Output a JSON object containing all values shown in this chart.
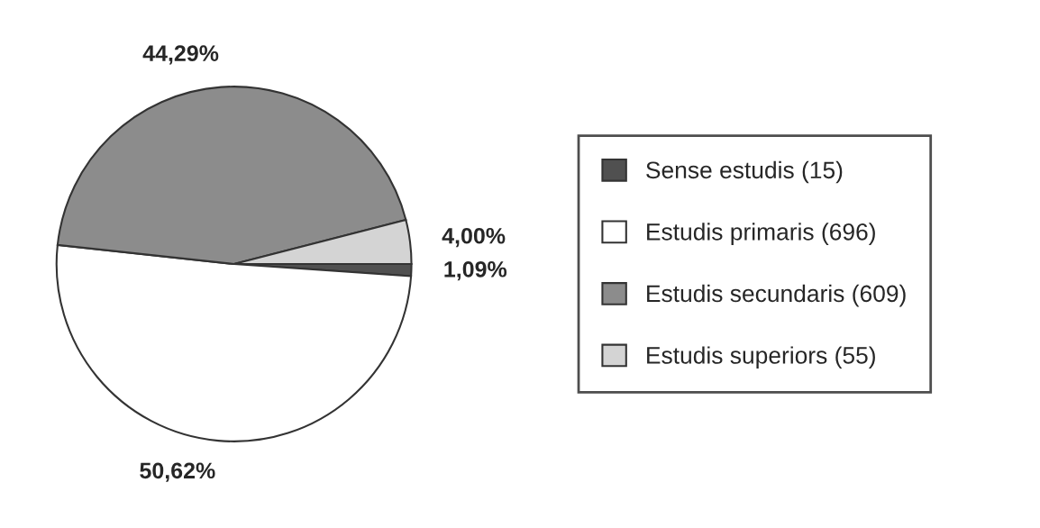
{
  "chart_data": {
    "type": "pie",
    "categories": [
      "Sense estudis (15)",
      "Estudis primaris (696)",
      "Estudis secundaris (609)",
      "Estudis superiors (55)"
    ],
    "values": [
      1.09,
      50.62,
      44.29,
      4.0
    ],
    "value_labels": [
      "1,09%",
      "50,62%",
      "44,29%",
      "4,00%"
    ],
    "colors": [
      "#505050",
      "#ffffff",
      "#8c8c8c",
      "#d4d4d4"
    ],
    "legend": "right"
  }
}
